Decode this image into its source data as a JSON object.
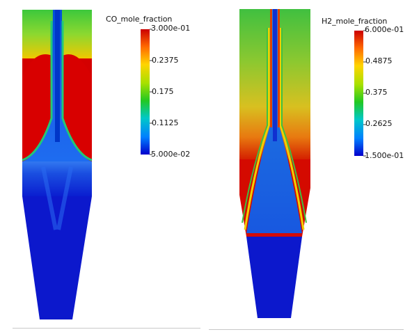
{
  "panels": [
    {
      "field": "CO_mole_fraction",
      "colorbar": {
        "title": "CO_mole_fraction",
        "ticks": [
          "3.000e-01",
          "0.2375",
          "0.175",
          "0.1125",
          "5.000e-02"
        ],
        "min": 0.05,
        "max": 0.3
      }
    },
    {
      "field": "H2_mole_fraction",
      "colorbar": {
        "title": "H2_mole_fraction",
        "ticks": [
          "6.000e-01",
          "0.4875",
          "0.375",
          "0.2625",
          "1.500e-01"
        ],
        "min": 0.15,
        "max": 0.6
      }
    }
  ],
  "colormap": {
    "name": "rainbow",
    "stops": [
      "#cc0000",
      "#ff6a00",
      "#ffd400",
      "#a8e000",
      "#22c822",
      "#00c8c8",
      "#0080ff",
      "#0000cc"
    ]
  }
}
